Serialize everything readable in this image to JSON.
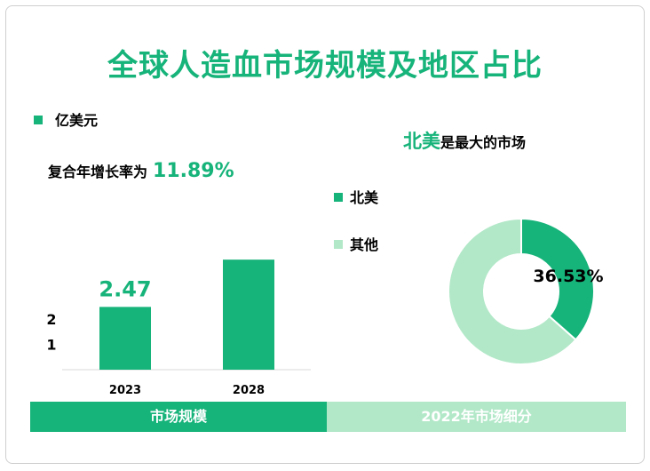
{
  "title": "全球人造血市场规模及地区占比",
  "colors": {
    "accent": "#16b37a",
    "light": "#b2e8c8"
  },
  "tabs": [
    "市场规模",
    "2022年市场细分"
  ],
  "chart_data": [
    {
      "type": "bar",
      "unit": "亿美元",
      "cagr_label": "复合年增长率为",
      "cagr_value": "11.89%",
      "categories": [
        "2023",
        "2028"
      ],
      "values": [
        2.47,
        4.33
      ],
      "data_labels": [
        "2.47",
        ""
      ],
      "y_ticks": [
        "1",
        "2"
      ],
      "ylim": [
        0,
        5
      ],
      "grid": false,
      "color": "#16b37a"
    },
    {
      "type": "pie",
      "donut": true,
      "headline_region": "北美",
      "headline_rest": "是最大的市场",
      "slices": [
        {
          "label": "北美",
          "value": 36.53,
          "value_label": "36.53%",
          "color": "#16b37a"
        },
        {
          "label": "其他",
          "value": 63.47,
          "value_label": "",
          "color": "#b2e8c8"
        }
      ],
      "legend_position": "left"
    }
  ]
}
